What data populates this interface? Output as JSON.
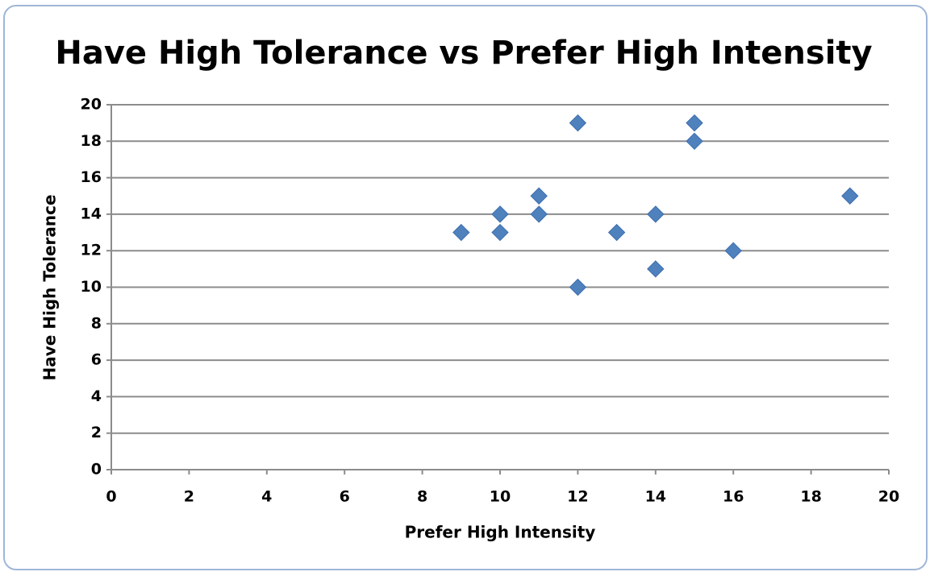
{
  "chart_data": {
    "type": "scatter",
    "title": "Have High Tolerance vs Prefer High Intensity",
    "x_label": "Prefer High Intensity",
    "y_label": "Have High Tolerance",
    "x": [
      9,
      10,
      10,
      11,
      11,
      12,
      12,
      13,
      14,
      14,
      15,
      15,
      16,
      19
    ],
    "series": [
      {
        "name": "Have High Tolerance",
        "color": "#4f81bd",
        "values": [
          13,
          14,
          13,
          15,
          14,
          19,
          10,
          13,
          14,
          11,
          19,
          18,
          12,
          15
        ]
      }
    ],
    "xlim": [
      0,
      20
    ],
    "xticks": [
      0,
      2,
      4,
      6,
      8,
      10,
      12,
      14,
      16,
      18,
      20
    ],
    "ylim": [
      0,
      20
    ],
    "yticks": [
      0,
      2,
      4,
      6,
      8,
      10,
      12,
      14,
      16,
      18,
      20
    ],
    "grid": true,
    "legend": false
  }
}
